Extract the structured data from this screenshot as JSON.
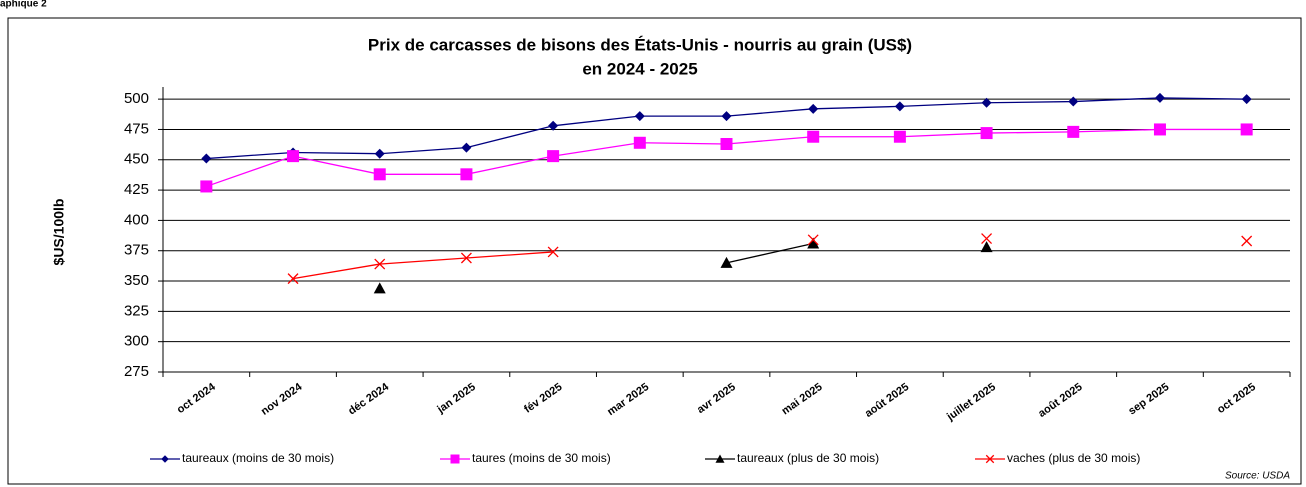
{
  "caption": "aphique 2",
  "chart_data": {
    "type": "line",
    "title": "Prix de carcasses de bisons des États-Unis - nourris au grain (US$)",
    "subtitle": "en 2024 - 2025",
    "y_label": "$US/100lb",
    "source": "Source: USDA",
    "categories": [
      "oct 2024",
      "nov 2024",
      "déc 2024",
      "jan 2025",
      "fév 2025",
      "mar 2025",
      "avr 2025",
      "mai 2025",
      "août 2025",
      "juillet 2025",
      "août 2025",
      "sep 2025",
      "oct 2025"
    ],
    "ylim": [
      275,
      510
    ],
    "yticks": [
      275,
      300,
      325,
      350,
      375,
      400,
      425,
      450,
      475,
      500
    ],
    "grid": true,
    "legend": "bottom",
    "series": [
      {
        "name": "taureaux (moins de 30 mois)",
        "color": "#000080",
        "marker": "diamond",
        "values": [
          451,
          456,
          455,
          460,
          478,
          486,
          486,
          492,
          494,
          497,
          498,
          501,
          500
        ]
      },
      {
        "name": "taures (moins de 30 mois)",
        "color": "#ff00ff",
        "marker": "square",
        "values": [
          428,
          453,
          438,
          438,
          453,
          464,
          463,
          469,
          469,
          472,
          473,
          475,
          475
        ]
      },
      {
        "name": "taureaux (plus de 30 mois)",
        "color": "#000000",
        "marker": "triangle",
        "values": [
          null,
          null,
          344,
          null,
          null,
          null,
          365,
          381,
          null,
          378,
          null,
          null,
          null
        ]
      },
      {
        "name": "vaches (plus de 30 mois)",
        "color": "#ff0000",
        "marker": "x",
        "values": [
          null,
          352,
          364,
          369,
          374,
          null,
          null,
          384,
          null,
          385,
          null,
          null,
          383
        ]
      }
    ]
  }
}
